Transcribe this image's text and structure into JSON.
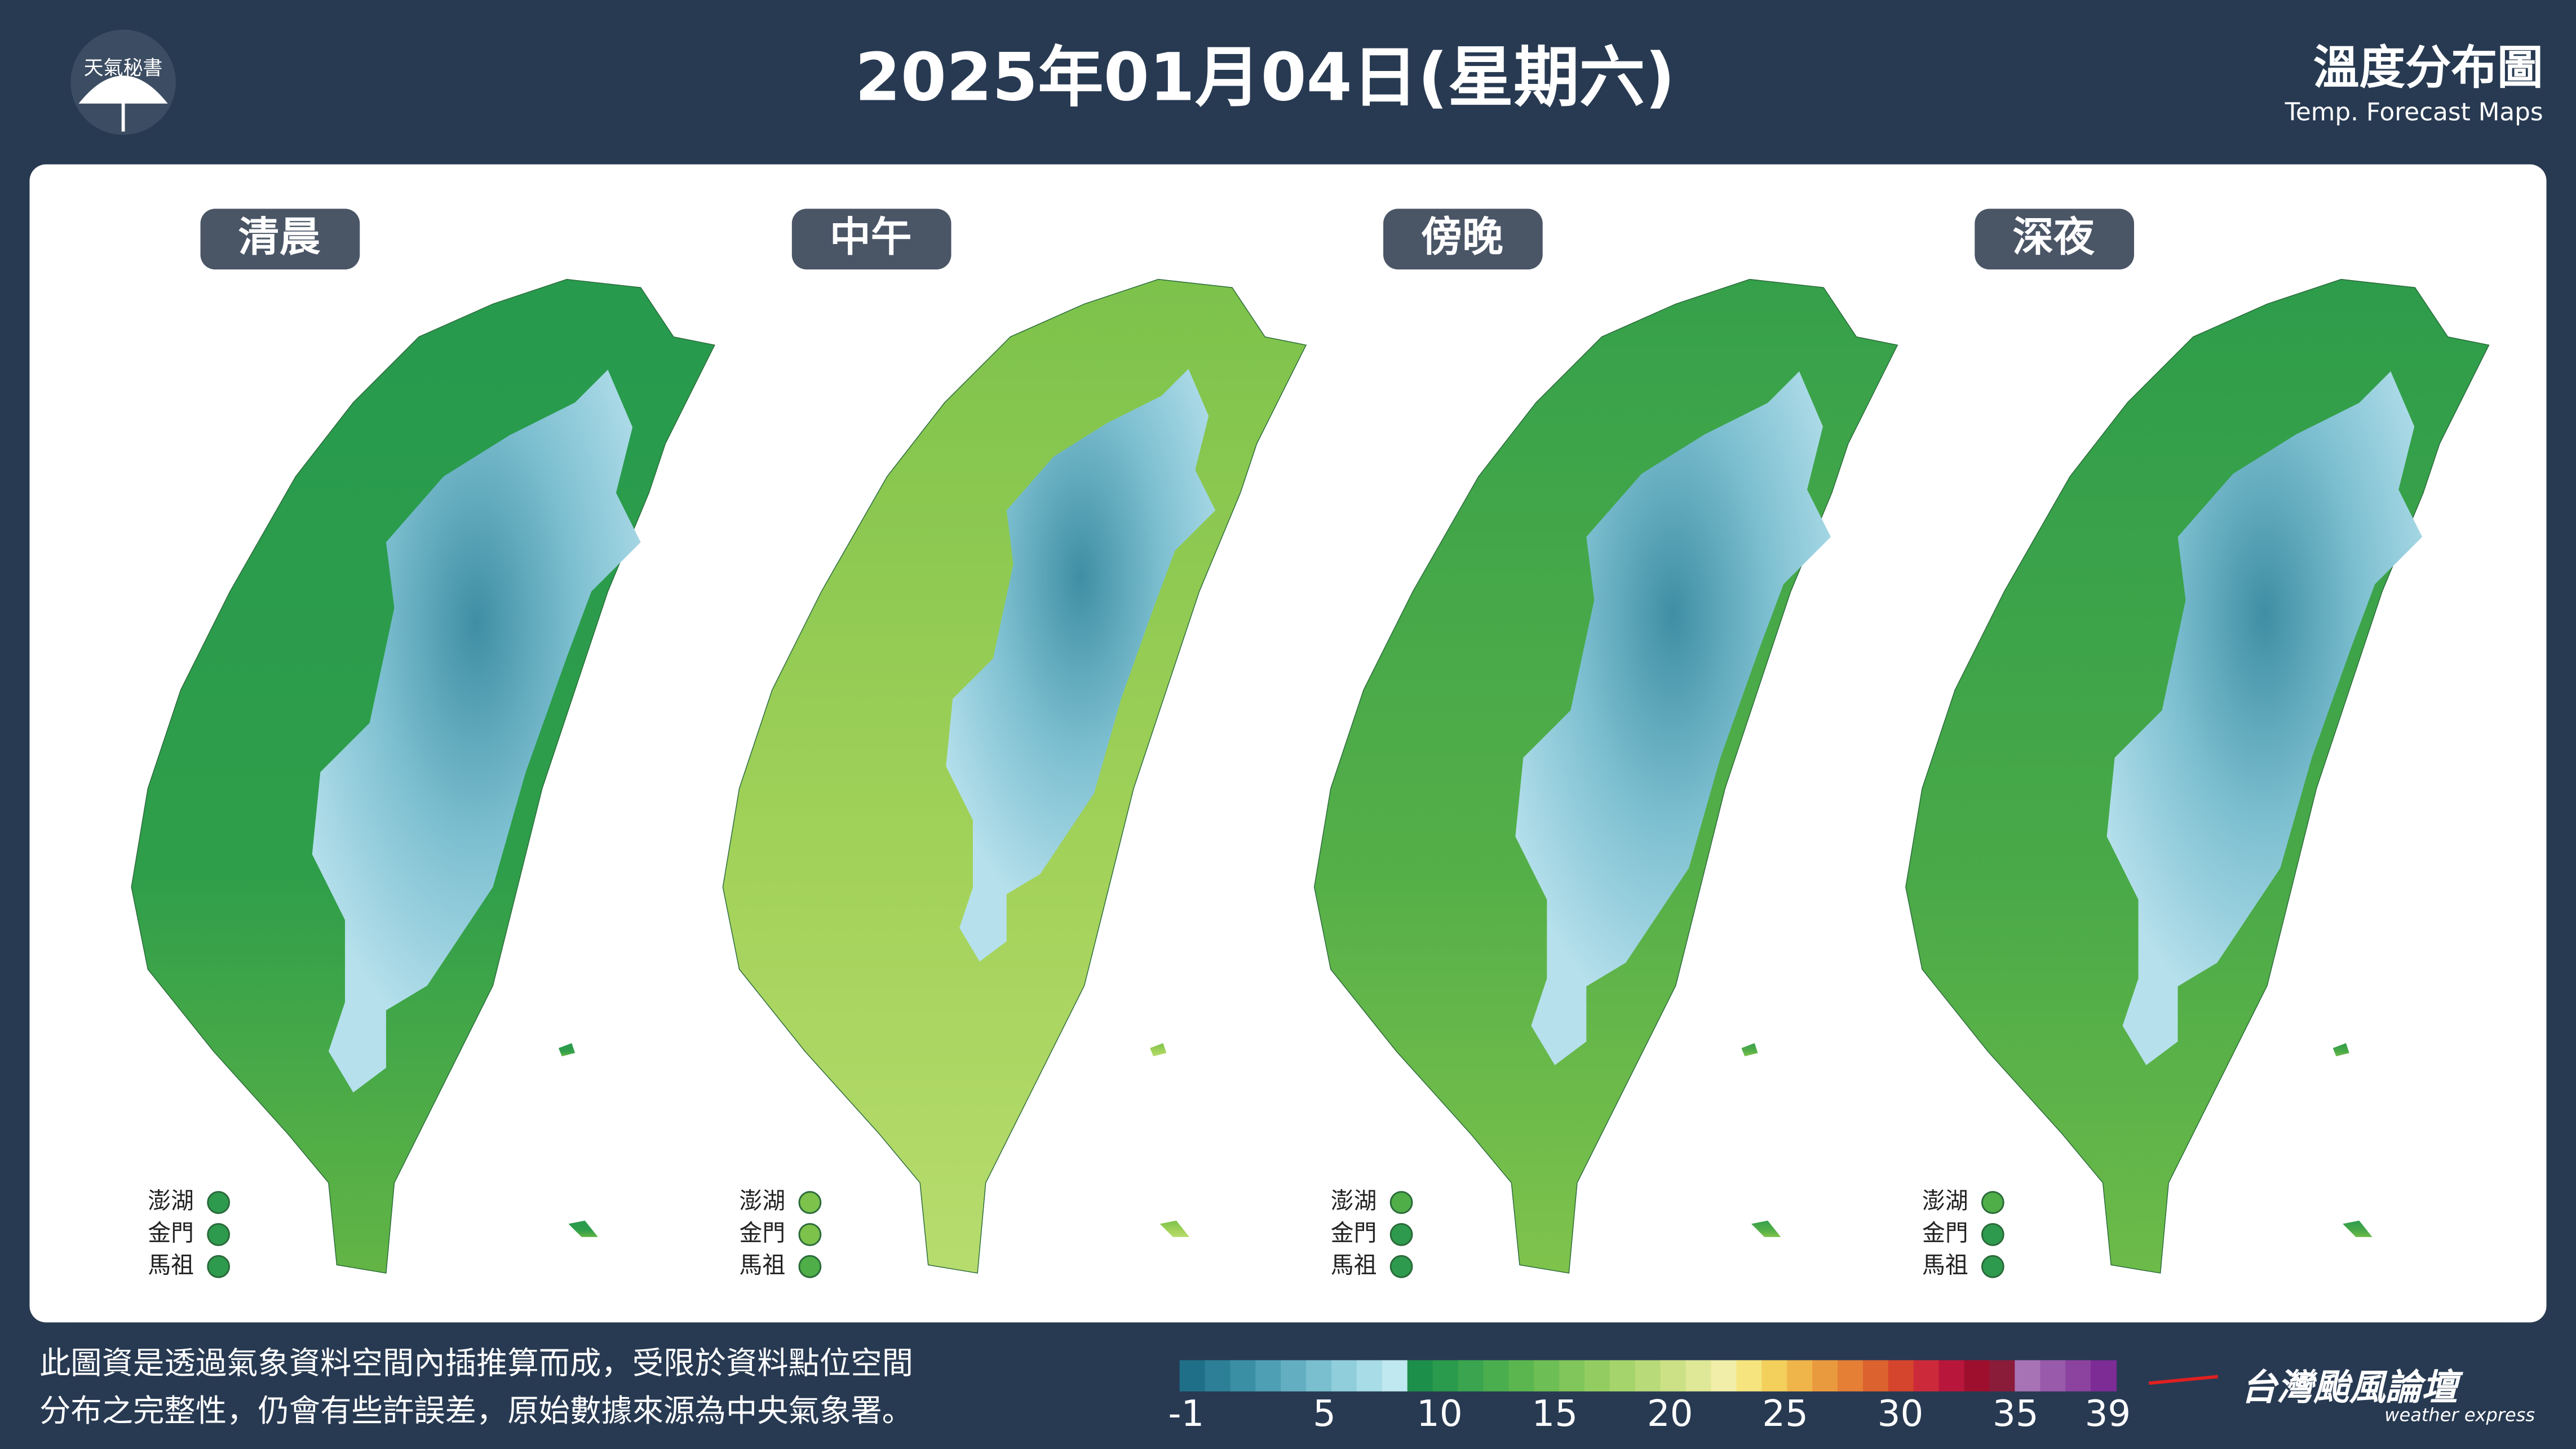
{
  "header": {
    "logo_text": "天氣秘書",
    "title": "2025年01月04日(星期六)",
    "brand_title": "溫度分布圖",
    "brand_subtitle": "Temp. Forecast Maps"
  },
  "panels": [
    {
      "label": "清晨"
    },
    {
      "label": "中午"
    },
    {
      "label": "傍晚"
    },
    {
      "label": "深夜"
    }
  ],
  "islands": [
    "澎湖",
    "金門",
    "馬祖"
  ],
  "footer": {
    "note_lines": [
      "此圖資是透過氣象資料空間內插推算而成，受限於資料點位空間",
      "分布之完整性，仍會有些許誤差，原始數據來源為中央氣象署。"
    ],
    "colorbar_ticks": [
      -1,
      5,
      10,
      15,
      20,
      25,
      30,
      35,
      39
    ],
    "brand": "台灣颱風論壇",
    "brand_sub": "weather express"
  }
}
